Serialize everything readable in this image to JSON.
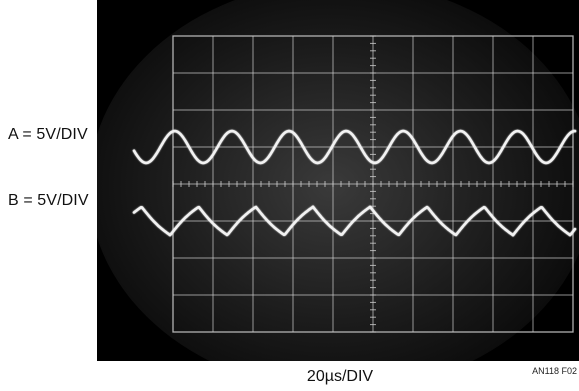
{
  "chart_data": {
    "type": "line",
    "title": "",
    "xlabel": "20µs/DIV",
    "grid": true,
    "series": [
      {
        "name": "A = 5V/DIV",
        "shape": "sine",
        "cycles_per_div": 0.7,
        "amplitude_div": 0.43,
        "offset_div": 1.0,
        "phase_cycles": 0.22
      },
      {
        "name": "B = 5V/DIV",
        "shape": "triangle",
        "cycles_per_div": 0.7,
        "amplitude_div": 0.45,
        "offset_div": -1.0,
        "phase_cycles": 0.05
      }
    ],
    "grid_divisions": {
      "x": 10,
      "y": 8
    },
    "colors": {
      "background": "#000000",
      "graticule": "#cfcfcf",
      "trace": "#f2f2f2"
    }
  },
  "figure_ref": "AN118 F02"
}
